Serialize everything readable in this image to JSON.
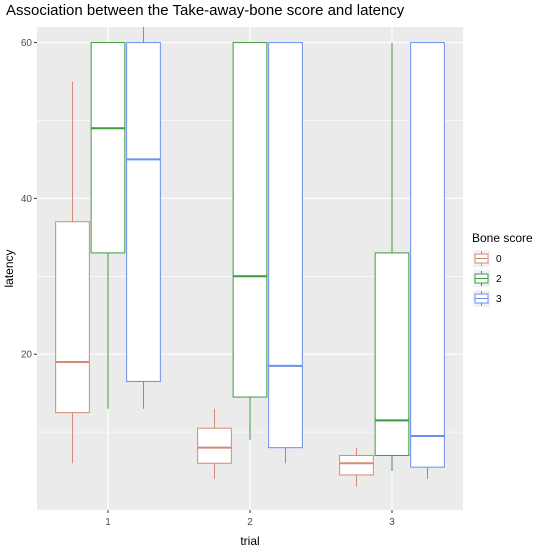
{
  "chart_data": {
    "type": "boxplot",
    "title": "Association between the Take-away-bone score and latency",
    "xlabel": "trial",
    "ylabel": "latency",
    "categories": [
      "1",
      "2",
      "3"
    ],
    "y_ticks": [
      20,
      40,
      60
    ],
    "ylim": [
      0,
      62
    ],
    "grid": true,
    "legend": {
      "title": "Bone score",
      "position": "right"
    },
    "series": [
      {
        "name": "0",
        "color": "#d58a74",
        "boxes": [
          {
            "x": "1",
            "min": 6,
            "q1": 12.5,
            "median": 19,
            "q3": 37,
            "max": 55
          },
          {
            "x": "2",
            "min": 4,
            "q1": 6,
            "median": 8,
            "q3": 10.5,
            "max": 13
          },
          {
            "x": "3",
            "min": 3,
            "q1": 4.5,
            "median": 6,
            "q3": 7,
            "max": 8
          }
        ]
      },
      {
        "name": "2",
        "color": "#3d9a3d",
        "boxes": [
          {
            "x": "1",
            "min": 13,
            "q1": 33,
            "median": 49,
            "q3": 60,
            "max": 60
          },
          {
            "x": "2",
            "min": 9,
            "q1": 14.5,
            "median": 30,
            "q3": 60,
            "max": 60
          },
          {
            "x": "3",
            "min": 5,
            "q1": 7,
            "median": 11.5,
            "q3": 33,
            "max": 60
          }
        ]
      },
      {
        "name": "3",
        "color": "#6a8ff0",
        "boxes": [
          {
            "x": "1",
            "min": 13,
            "q1": 16.5,
            "median": 45,
            "q3": 60,
            "max": 62
          },
          {
            "x": "2",
            "min": 6,
            "q1": 8,
            "median": 18.5,
            "q3": 60,
            "max": 60
          },
          {
            "x": "3",
            "min": 4,
            "q1": 5.5,
            "median": 9.5,
            "q3": 60,
            "max": 60
          }
        ]
      }
    ]
  }
}
